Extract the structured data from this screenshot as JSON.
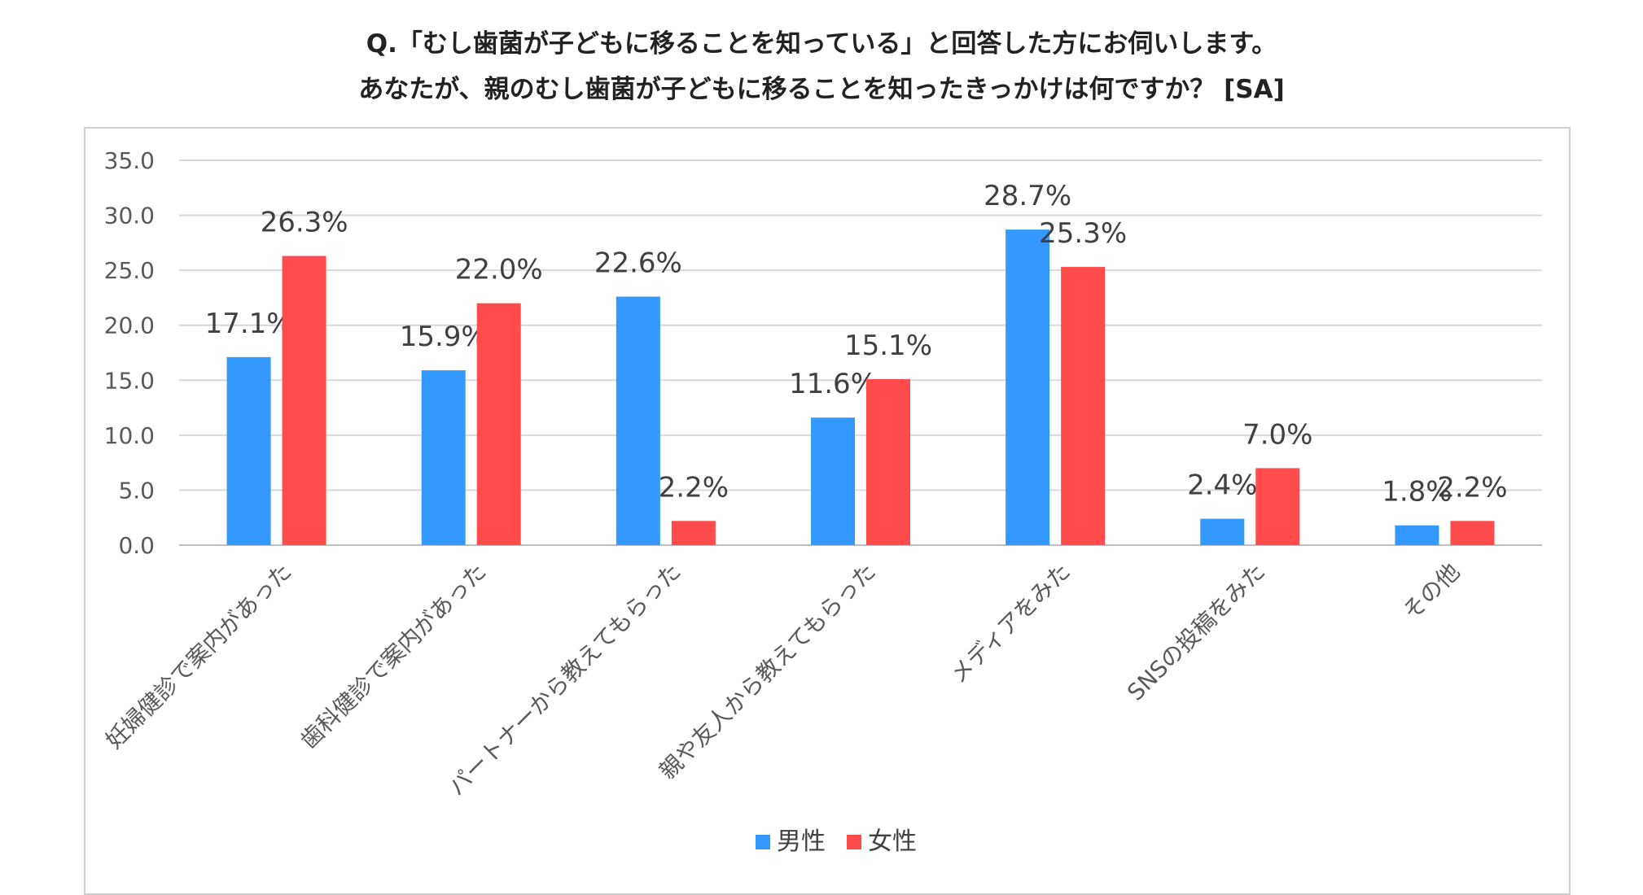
{
  "title_line1": "Q.「むし歯菌が子どもに移ることを知っている」と回答した方にお伺いします。",
  "title_line2": "あなたが、親のむし歯菌が子どもに移ることを知ったきっかけは何ですか？ [SA]",
  "colors": {
    "male": "#3399FF",
    "female": "#FF4B4B",
    "grid": "#D9D9D9",
    "axis": "#BFBFBF"
  },
  "chart_data": {
    "type": "bar",
    "categories": [
      "妊婦健診で案内があった",
      "歯科健診で案内があった",
      "パートナーから教えてもらった",
      "親や友人から教えてもらった",
      "メディアをみた",
      "SNSの投稿をみた",
      "その他"
    ],
    "series": [
      {
        "name": "男性",
        "values": [
          17.1,
          15.9,
          22.6,
          11.6,
          28.7,
          2.4,
          1.8
        ],
        "labels": [
          "17.1%",
          "15.9%",
          "22.6%",
          "11.6%",
          "28.7%",
          "2.4%",
          "1.8%"
        ]
      },
      {
        "name": "女性",
        "values": [
          26.3,
          22.0,
          2.2,
          15.1,
          25.3,
          7.0,
          2.2
        ],
        "labels": [
          "26.3%",
          "22.0%",
          "2.2%",
          "15.1%",
          "25.3%",
          "7.0%",
          "2.2%"
        ]
      }
    ],
    "yticks": [
      "0.0",
      "5.0",
      "10.0",
      "15.0",
      "20.0",
      "25.0",
      "30.0",
      "35.0"
    ],
    "ylim": [
      0,
      35
    ],
    "grid": true,
    "legend": "bottom"
  }
}
